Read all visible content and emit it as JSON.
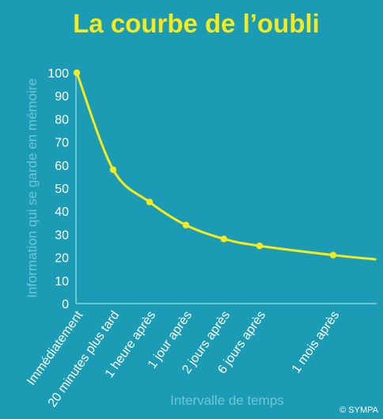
{
  "chart_data": {
    "type": "line",
    "title": "La courbe de l’oubli",
    "xlabel": "Intervalle de temps",
    "ylabel": "Information qui se garde en mémoire",
    "ylim": [
      0,
      100
    ],
    "yticks": [
      0,
      10,
      20,
      30,
      40,
      50,
      60,
      70,
      80,
      90,
      100
    ],
    "categories": [
      "Immédiatement",
      "20 minutes plus tard",
      "1 heure après",
      "1 jour après",
      "2 jours après",
      "6 jours après",
      "1 mois après"
    ],
    "values": [
      100,
      58,
      44,
      34,
      28,
      25,
      21
    ],
    "grid": false,
    "legend": "none"
  },
  "credit": "© SYMPA",
  "colors": {
    "background": "#1c9bb5",
    "accent": "#f5ea1e",
    "axis": "#6fc7d6",
    "text": "#ffffff"
  }
}
